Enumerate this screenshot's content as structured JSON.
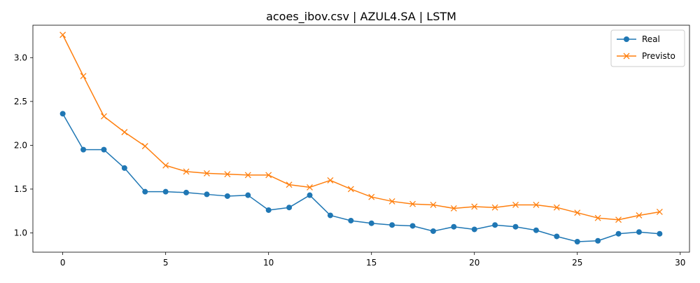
{
  "chart_data": {
    "type": "line",
    "title": "acoes_ibov.csv | AZUL4.SA | LSTM",
    "xlabel": "",
    "ylabel": "",
    "x": [
      0,
      1,
      2,
      3,
      4,
      5,
      6,
      7,
      8,
      9,
      10,
      11,
      12,
      13,
      14,
      15,
      16,
      17,
      18,
      19,
      20,
      21,
      22,
      23,
      24,
      25,
      26,
      27,
      28,
      29
    ],
    "xlim": [
      -1.45,
      30.45
    ],
    "ylim": [
      0.78,
      3.37
    ],
    "xticks": [
      0,
      5,
      10,
      15,
      20,
      25,
      30
    ],
    "xtick_labels": [
      "0",
      "5",
      "10",
      "15",
      "20",
      "25",
      "30"
    ],
    "yticks": [
      1.0,
      1.5,
      2.0,
      2.5,
      3.0
    ],
    "ytick_labels": [
      "1.0",
      "1.5",
      "2.0",
      "2.5",
      "3.0"
    ],
    "grid": false,
    "legend_position": "top-right",
    "series": [
      {
        "name": "Real",
        "color": "#1f77b4",
        "marker": "circle",
        "values": [
          2.36,
          1.95,
          1.95,
          1.74,
          1.47,
          1.47,
          1.46,
          1.44,
          1.42,
          1.43,
          1.26,
          1.29,
          1.43,
          1.2,
          1.14,
          1.11,
          1.09,
          1.08,
          1.02,
          1.07,
          1.04,
          1.09,
          1.07,
          1.03,
          0.96,
          0.9,
          0.91,
          0.99,
          1.01,
          0.99
        ]
      },
      {
        "name": "Previsto",
        "color": "#ff7f0e",
        "marker": "x",
        "values": [
          3.26,
          2.79,
          2.33,
          2.15,
          1.99,
          1.77,
          1.7,
          1.68,
          1.67,
          1.66,
          1.66,
          1.55,
          1.52,
          1.6,
          1.5,
          1.41,
          1.36,
          1.33,
          1.32,
          1.28,
          1.3,
          1.29,
          1.32,
          1.32,
          1.29,
          1.23,
          1.17,
          1.15,
          1.2,
          1.24
        ]
      }
    ]
  }
}
